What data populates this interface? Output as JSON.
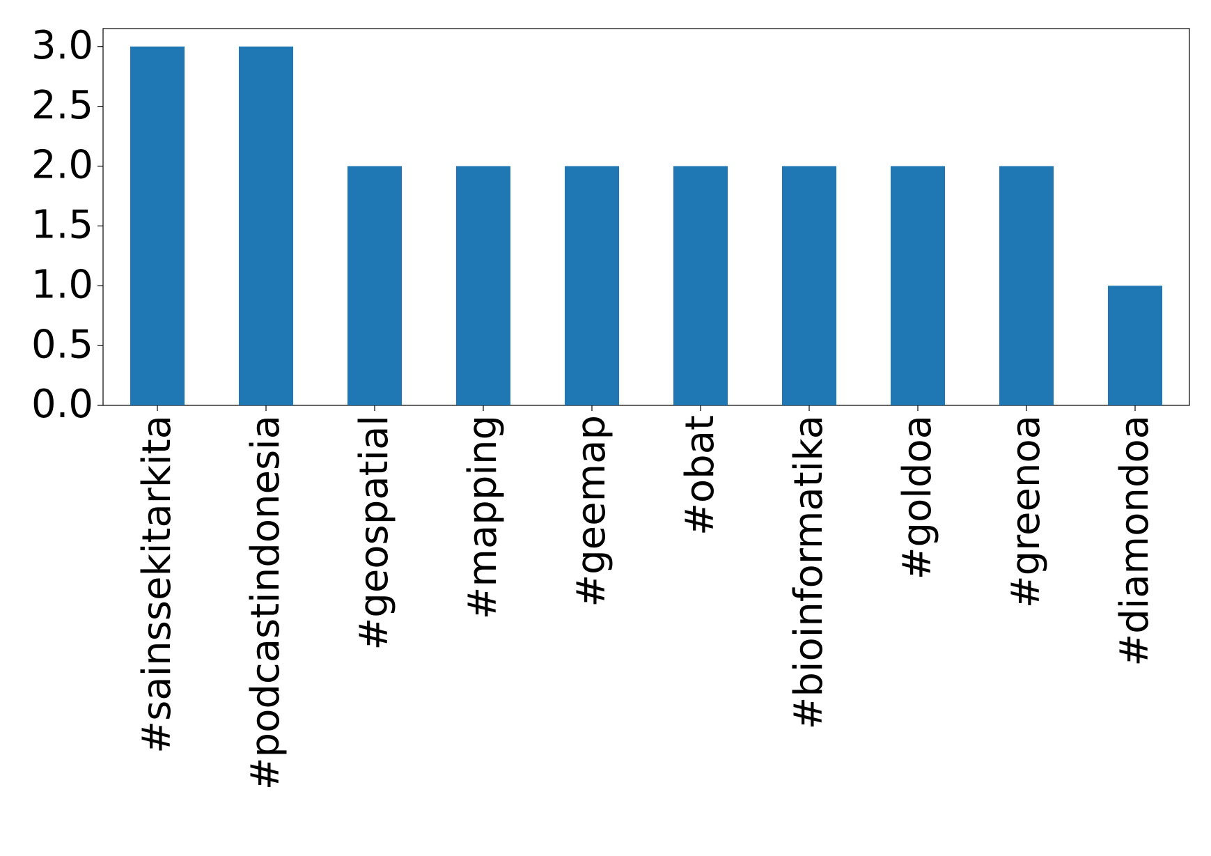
{
  "chart_data": {
    "type": "bar",
    "categories": [
      "#sainssekitarkita",
      "#podcastindonesia",
      "#geospatial",
      "#mapping",
      "#geemap",
      "#obat",
      "#bioinformatika",
      "#goldoa",
      "#greenoa",
      "#diamondoa"
    ],
    "values": [
      3,
      3,
      2,
      2,
      2,
      2,
      2,
      2,
      2,
      1
    ],
    "color": "#1f77b4",
    "ylim": [
      0,
      3.15
    ],
    "yticks": [
      {
        "value": 0,
        "label": "0.0"
      },
      0.5,
      {
        "value": 1,
        "label": "1.0"
      },
      1.5,
      {
        "value": 2,
        "label": "2.0"
      },
      2.5,
      {
        "value": 3,
        "label": "3.0"
      }
    ],
    "grid": false
  }
}
